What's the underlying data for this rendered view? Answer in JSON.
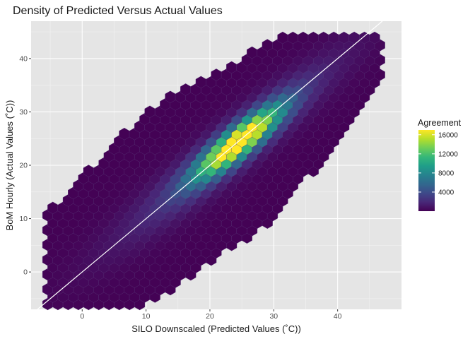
{
  "chart_data": {
    "type": "heatmap",
    "subtype": "hexbin",
    "title": "Density of Predicted Versus Actual Values",
    "xlabel": "SILO Downscaled (Predicted Values (˚C))",
    "ylabel": "BoM Hourly (Actual Values (˚C))",
    "xlim": [
      -8,
      50
    ],
    "ylim": [
      -7,
      47
    ],
    "x_ticks": [
      0,
      10,
      20,
      30,
      40
    ],
    "y_ticks": [
      0,
      10,
      20,
      30,
      40
    ],
    "grid": true,
    "reference_line": {
      "type": "identity",
      "slope": 1,
      "intercept": 0,
      "color": "#ffffff"
    },
    "legend": {
      "title": "Agreement",
      "placement": "right",
      "breaks": [
        4000,
        8000,
        12000,
        16000
      ],
      "min": 1,
      "max": 17000,
      "colormap": "viridis"
    },
    "density_model": {
      "description": "approximate hexbin counts; main density along y = x",
      "peak_center": [
        24.5,
        24.5
      ],
      "peak_count": 17000,
      "band_count": 3500,
      "region_x_range": [
        -6,
        47
      ],
      "region_y_range": [
        -6,
        45
      ]
    }
  },
  "colors": {
    "panel_background": "#e5e5e5",
    "grid_major": "#ffffff",
    "hex_border": "#5a3f7d",
    "viridis": [
      "#440154",
      "#482878",
      "#3e4989",
      "#31688e",
      "#26828e",
      "#1f9e89",
      "#35b779",
      "#6ece58",
      "#b5de2b",
      "#fde725"
    ]
  }
}
